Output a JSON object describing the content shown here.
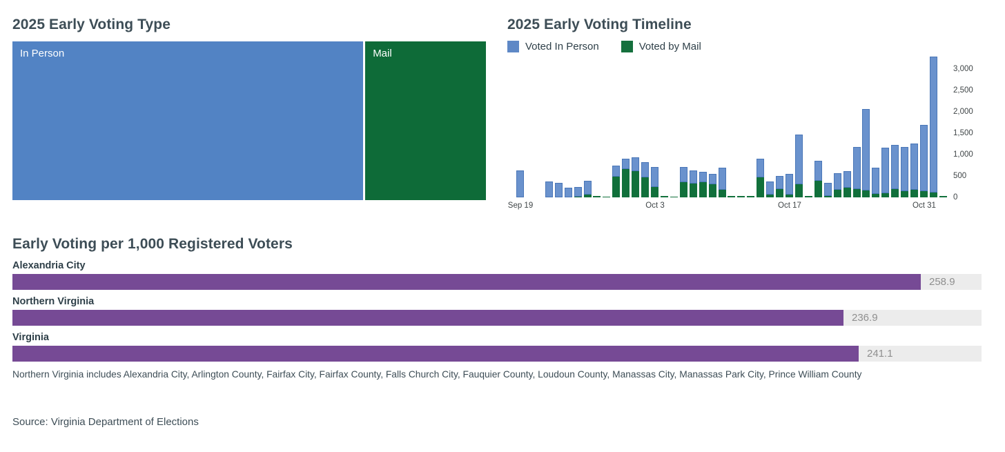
{
  "page": {
    "footnote": "Northern Virginia includes Alexandria City, Arlington County, Fairfax City, Fairfax County, Falls Church City, Fauquier County, Loudoun County, Manassas City, Manassas Park City, Prince William County",
    "source": "Source: Virginia Department of Elections"
  },
  "colors": {
    "in_person_blue": "#5283c4",
    "timeline_blue_fill": "#6a92cd",
    "timeline_blue_border": "#4976b7",
    "mail_green": "#0e6b38",
    "timeline_green_fill": "#11703b",
    "purple": "#764a95",
    "bar_track_gray": "#ececec",
    "value_label_gray": "#8f8f8f",
    "heading_slate": "#3d4d56",
    "label_dark": "#2e3f48",
    "axis_gray": "#3f4547"
  },
  "chart_data": [
    {
      "id": "voting_type",
      "type": "treemap",
      "title": "2025 Early Voting Type",
      "segments": [
        {
          "label": "In Person",
          "share": 74.3,
          "color_key": "in_person_blue"
        },
        {
          "label": "Mail",
          "share": 25.7,
          "color_key": "mail_green"
        }
      ]
    },
    {
      "id": "timeline",
      "type": "bar",
      "title": "2025 Early Voting Timeline",
      "stacking": "stacked",
      "legend": [
        {
          "label": "Voted In Person",
          "color_key": "timeline_blue_fill"
        },
        {
          "label": "Voted by Mail",
          "color_key": "timeline_green_fill"
        }
      ],
      "ylim": [
        0,
        3000
      ],
      "yticks": [
        0,
        500,
        1000,
        1500,
        2000,
        2500,
        3000
      ],
      "ytick_labels": [
        "0",
        "500",
        "1,000",
        "1,500",
        "2,000",
        "2,500",
        "3,000"
      ],
      "legend_position": "top-left",
      "grid": false,
      "xticks": [
        {
          "label": "Sep 19",
          "day_index": 0
        },
        {
          "label": "Oct 3",
          "day_index": 14
        },
        {
          "label": "Oct 17",
          "day_index": 28
        },
        {
          "label": "Oct 31",
          "day_index": 42
        }
      ],
      "series_names": [
        "Voted In Person",
        "Voted by Mail"
      ],
      "days": [
        {
          "date": "Sep 19",
          "in_person": 630,
          "mail": 0
        },
        {
          "date": "Sep 20",
          "in_person": 0,
          "mail": 0
        },
        {
          "date": "Sep 21",
          "in_person": 0,
          "mail": 0
        },
        {
          "date": "Sep 22",
          "in_person": 370,
          "mail": 0
        },
        {
          "date": "Sep 23",
          "in_person": 340,
          "mail": 0
        },
        {
          "date": "Sep 24",
          "in_person": 220,
          "mail": 0
        },
        {
          "date": "Sep 25",
          "in_person": 230,
          "mail": 20
        },
        {
          "date": "Sep 26",
          "in_person": 320,
          "mail": 70
        },
        {
          "date": "Sep 27",
          "in_person": 0,
          "mail": 30
        },
        {
          "date": "Sep 28",
          "in_person": 0,
          "mail": 15
        },
        {
          "date": "Sep 29",
          "in_person": 260,
          "mail": 480
        },
        {
          "date": "Sep 30",
          "in_person": 240,
          "mail": 660
        },
        {
          "date": "Oct 1",
          "in_person": 330,
          "mail": 610
        },
        {
          "date": "Oct 2",
          "in_person": 360,
          "mail": 460
        },
        {
          "date": "Oct 3",
          "in_person": 460,
          "mail": 240
        },
        {
          "date": "Oct 4",
          "in_person": 0,
          "mail": 25
        },
        {
          "date": "Oct 5",
          "in_person": 0,
          "mail": 20
        },
        {
          "date": "Oct 6",
          "in_person": 355,
          "mail": 355
        },
        {
          "date": "Oct 7",
          "in_person": 310,
          "mail": 320
        },
        {
          "date": "Oct 8",
          "in_person": 235,
          "mail": 355
        },
        {
          "date": "Oct 9",
          "in_person": 235,
          "mail": 300
        },
        {
          "date": "Oct 10",
          "in_person": 520,
          "mail": 170
        },
        {
          "date": "Oct 11",
          "in_person": 0,
          "mail": 25
        },
        {
          "date": "Oct 12",
          "in_person": 0,
          "mail": 25
        },
        {
          "date": "Oct 13",
          "in_person": 0,
          "mail": 25
        },
        {
          "date": "Oct 14",
          "in_person": 430,
          "mail": 460
        },
        {
          "date": "Oct 15",
          "in_person": 305,
          "mail": 70
        },
        {
          "date": "Oct 16",
          "in_person": 310,
          "mail": 190
        },
        {
          "date": "Oct 17",
          "in_person": 480,
          "mail": 70
        },
        {
          "date": "Oct 18",
          "in_person": 1160,
          "mail": 310
        },
        {
          "date": "Oct 19",
          "in_person": 0,
          "mail": 30
        },
        {
          "date": "Oct 20",
          "in_person": 460,
          "mail": 390
        },
        {
          "date": "Oct 21",
          "in_person": 310,
          "mail": 40
        },
        {
          "date": "Oct 22",
          "in_person": 390,
          "mail": 180
        },
        {
          "date": "Oct 23",
          "in_person": 380,
          "mail": 230
        },
        {
          "date": "Oct 24",
          "in_person": 980,
          "mail": 200
        },
        {
          "date": "Oct 25",
          "in_person": 1900,
          "mail": 160
        },
        {
          "date": "Oct 26",
          "in_person": 620,
          "mail": 80
        },
        {
          "date": "Oct 27",
          "in_person": 1060,
          "mail": 90
        },
        {
          "date": "Oct 28",
          "in_person": 1040,
          "mail": 190
        },
        {
          "date": "Oct 29",
          "in_person": 1040,
          "mail": 150
        },
        {
          "date": "Oct 30",
          "in_person": 1080,
          "mail": 180
        },
        {
          "date": "Oct 31",
          "in_person": 1550,
          "mail": 150
        },
        {
          "date": "Nov 1",
          "in_person": 3180,
          "mail": 120
        },
        {
          "date": "Nov 2",
          "in_person": 0,
          "mail": 40
        }
      ]
    },
    {
      "id": "per_1000",
      "type": "bar_horizontal",
      "title": "Early Voting per 1,000 Registered Voters",
      "axis_max": 276.2,
      "grid": false,
      "rows": [
        {
          "label": "Alexandria City",
          "value": 258.9,
          "display": "258.9"
        },
        {
          "label": "Northern Virginia",
          "value": 236.9,
          "display": "236.9"
        },
        {
          "label": "Virginia",
          "value": 241.1,
          "display": "241.1"
        }
      ]
    }
  ]
}
